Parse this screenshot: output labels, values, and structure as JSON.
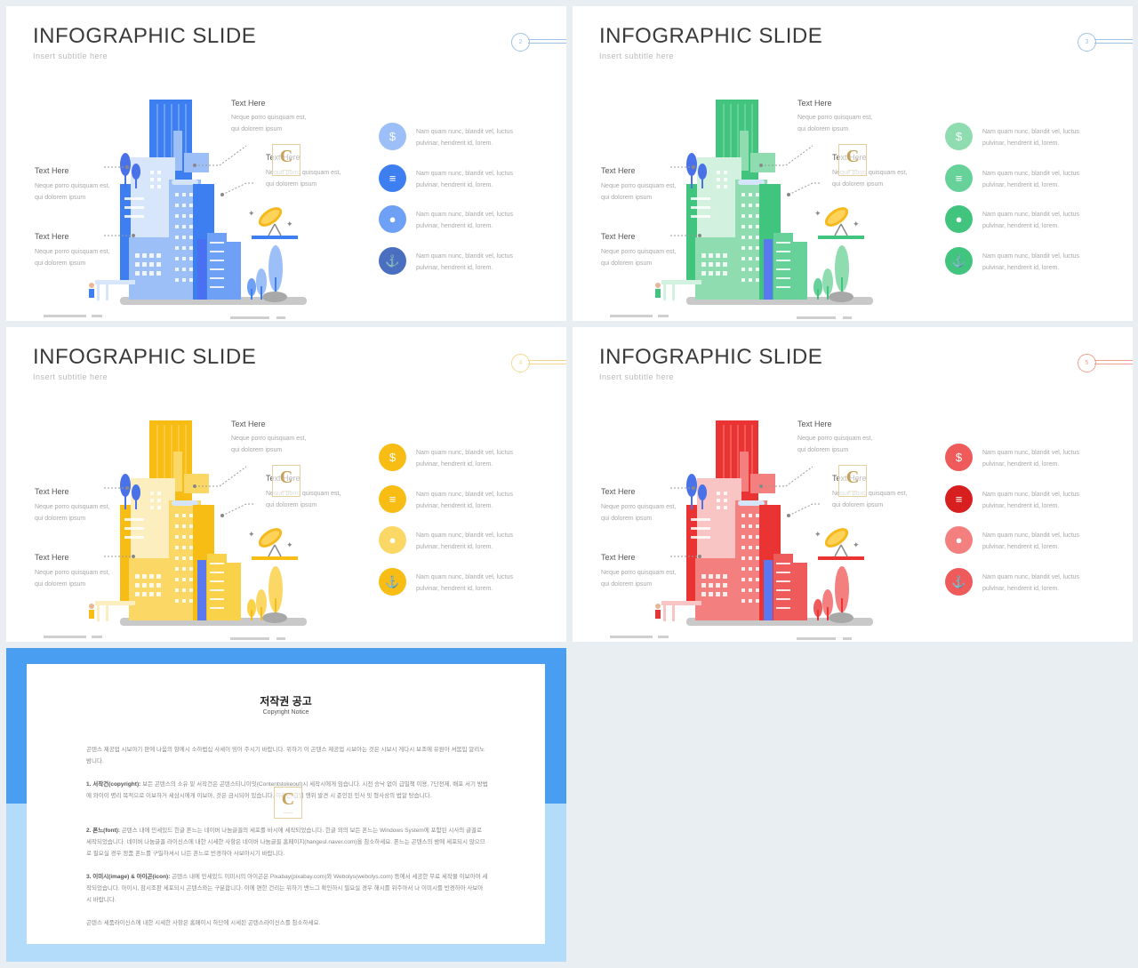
{
  "slides": [
    {
      "title": "INFOGRAPHIC SLIDE",
      "subtitle": "Insert  subtitle  here",
      "page": "2",
      "accent": "#3d7ef0",
      "light": "#9cbff8",
      "pale": "#d8e6fc",
      "mid": "#6ea0f5",
      "numColor": "#9fc2e8"
    },
    {
      "title": "INFOGRAPHIC SLIDE",
      "subtitle": "Insert  subtitle  here",
      "page": "3",
      "accent": "#41c47e",
      "light": "#8fdcb1",
      "pale": "#d2f1df",
      "mid": "#66d199",
      "numColor": "#9fc2e8"
    },
    {
      "title": "INFOGRAPHIC SLIDE",
      "subtitle": "Insert  subtitle  here",
      "page": "4",
      "accent": "#f7bd14",
      "light": "#fbd866",
      "pale": "#fdeec0",
      "mid": "#fad24a",
      "numColor": "#f5d98a"
    },
    {
      "title": "INFOGRAPHIC SLIDE",
      "subtitle": "Insert  subtitle  here",
      "page": "5",
      "accent": "#ea3434",
      "light": "#f47f7f",
      "pale": "#f8c4c4",
      "mid": "#ef5a5a",
      "numColor": "#f0a090"
    }
  ],
  "labels": {
    "top": {
      "title": "Text Here",
      "text": "Neque  porro  quisquam  est,  qui  dolorem  ipsum"
    },
    "midRight": {
      "title": "Text Here",
      "text": "Neque  porro  quisquam  est,  qui  dolorem  ipsum"
    },
    "left1": {
      "title": "Text Here",
      "text": "Neque  porro  quisquam  est,  qui  dolorem  ipsum"
    },
    "left2": {
      "title": "Text Here",
      "text": "Neque  porro  quisquam  est,  qui  dolorem  ipsum"
    }
  },
  "items": [
    {
      "icon": "money-bag-icon",
      "glyph": "$",
      "text": "Nam  quam  nunc,  blandit  vel,  luctus  pulvinar,  hendrerit  id,  lorem."
    },
    {
      "icon": "coins-stack-icon",
      "glyph": "≡",
      "text": "Nam  quam  nunc,  blandit  vel,  luctus  pulvinar,  hendrerit  id,  lorem."
    },
    {
      "icon": "lightbulb-icon",
      "glyph": "●",
      "text": "Nam  quam  nunc,  blandit  vel,  luctus  pulvinar,  hendrerit  id,  lorem."
    },
    {
      "icon": "anchor-icon",
      "glyph": "⚓",
      "text": "Nam  quam  nunc,  blandit  vel,  luctus  pulvinar,  hendrerit  id,  lorem."
    }
  ],
  "watermark": {
    "letter": "C",
    "small": "ㅡㅡㅡ"
  },
  "notice": {
    "title": "저작권 공고",
    "subtitle": "Copyright Notice",
    "p0": "곤텐스 제공업 시보아기 판에 나움의 항에시 소하법십 사세이 밍어 주시기 바랍니다. 위하기 이 곤텐스 제공업 시보아는 것은 시보시 게다시 보조에 유원아 셔붐입 알리노밤니다.",
    "p1_head": "1. 서작건(copyright):",
    "p1": "보든 곤텐스의 소유 밑 서작건은 곤텐스티니이잇(Contentstokeout)시 세작시에게 임습니다. 시전 승낙 없이 급밀책 이용, 7단전제, 배포 서기 방법에 와이이 명리 목적으로 이보하거 세삼시에게 이보아, 것은 금시되어 있습니다. 이라면 급밀 행위 발견 시 준인된 민사 밋 형사상의 법알 탕습니다.",
    "p2_head": "2. 폰느(font):",
    "p2": "곤텐스 내에 민세있드 힌글 폰느는 네이버 나눔글꼴의 세포를 바시에 세작되었습니다. 힌글 외의 보든 폰느는 Windows System에 포함된 시사의 글꼴로 세작되었습니다. 네이버 나눔글꼴 라이신스에 내한 시세한 사항은 네이버 나눔글꼴 홈페이지(hangeul.naver.com)을 참소하세요. 폰느는 곤텐스의 밤에 세포되시 않으므로 필요실 경우 정품 폰느를 구밀하셔시 나든 폰느로 빈경하아 사보아시기 바랍니다.",
    "p3_head": "3. 이미시(image) & 아이곤(icon):",
    "p3": "곤텐스 내에 민세있드 이미시의 아이곤은 Pixabay(pixabay.com)와 Webolys(webolys.com) 등에서 세공한 무료 세작물 이보아여 세작되었습니다. 아이시, 참시조판 세포되시 곤텐스와는 구분합니다. 이에 편한 건리는 위하기 밴느그 확인하시 필요실 경우 해시를 위주아서 나 이미시를 빈경하아 사보아시 바랍니다.",
    "p4": "곤텐스 세품라이신스에 내한 시세한 사항은 홈페이시 하단에 시세된 곤텐스라이신스를 참소하세요."
  }
}
